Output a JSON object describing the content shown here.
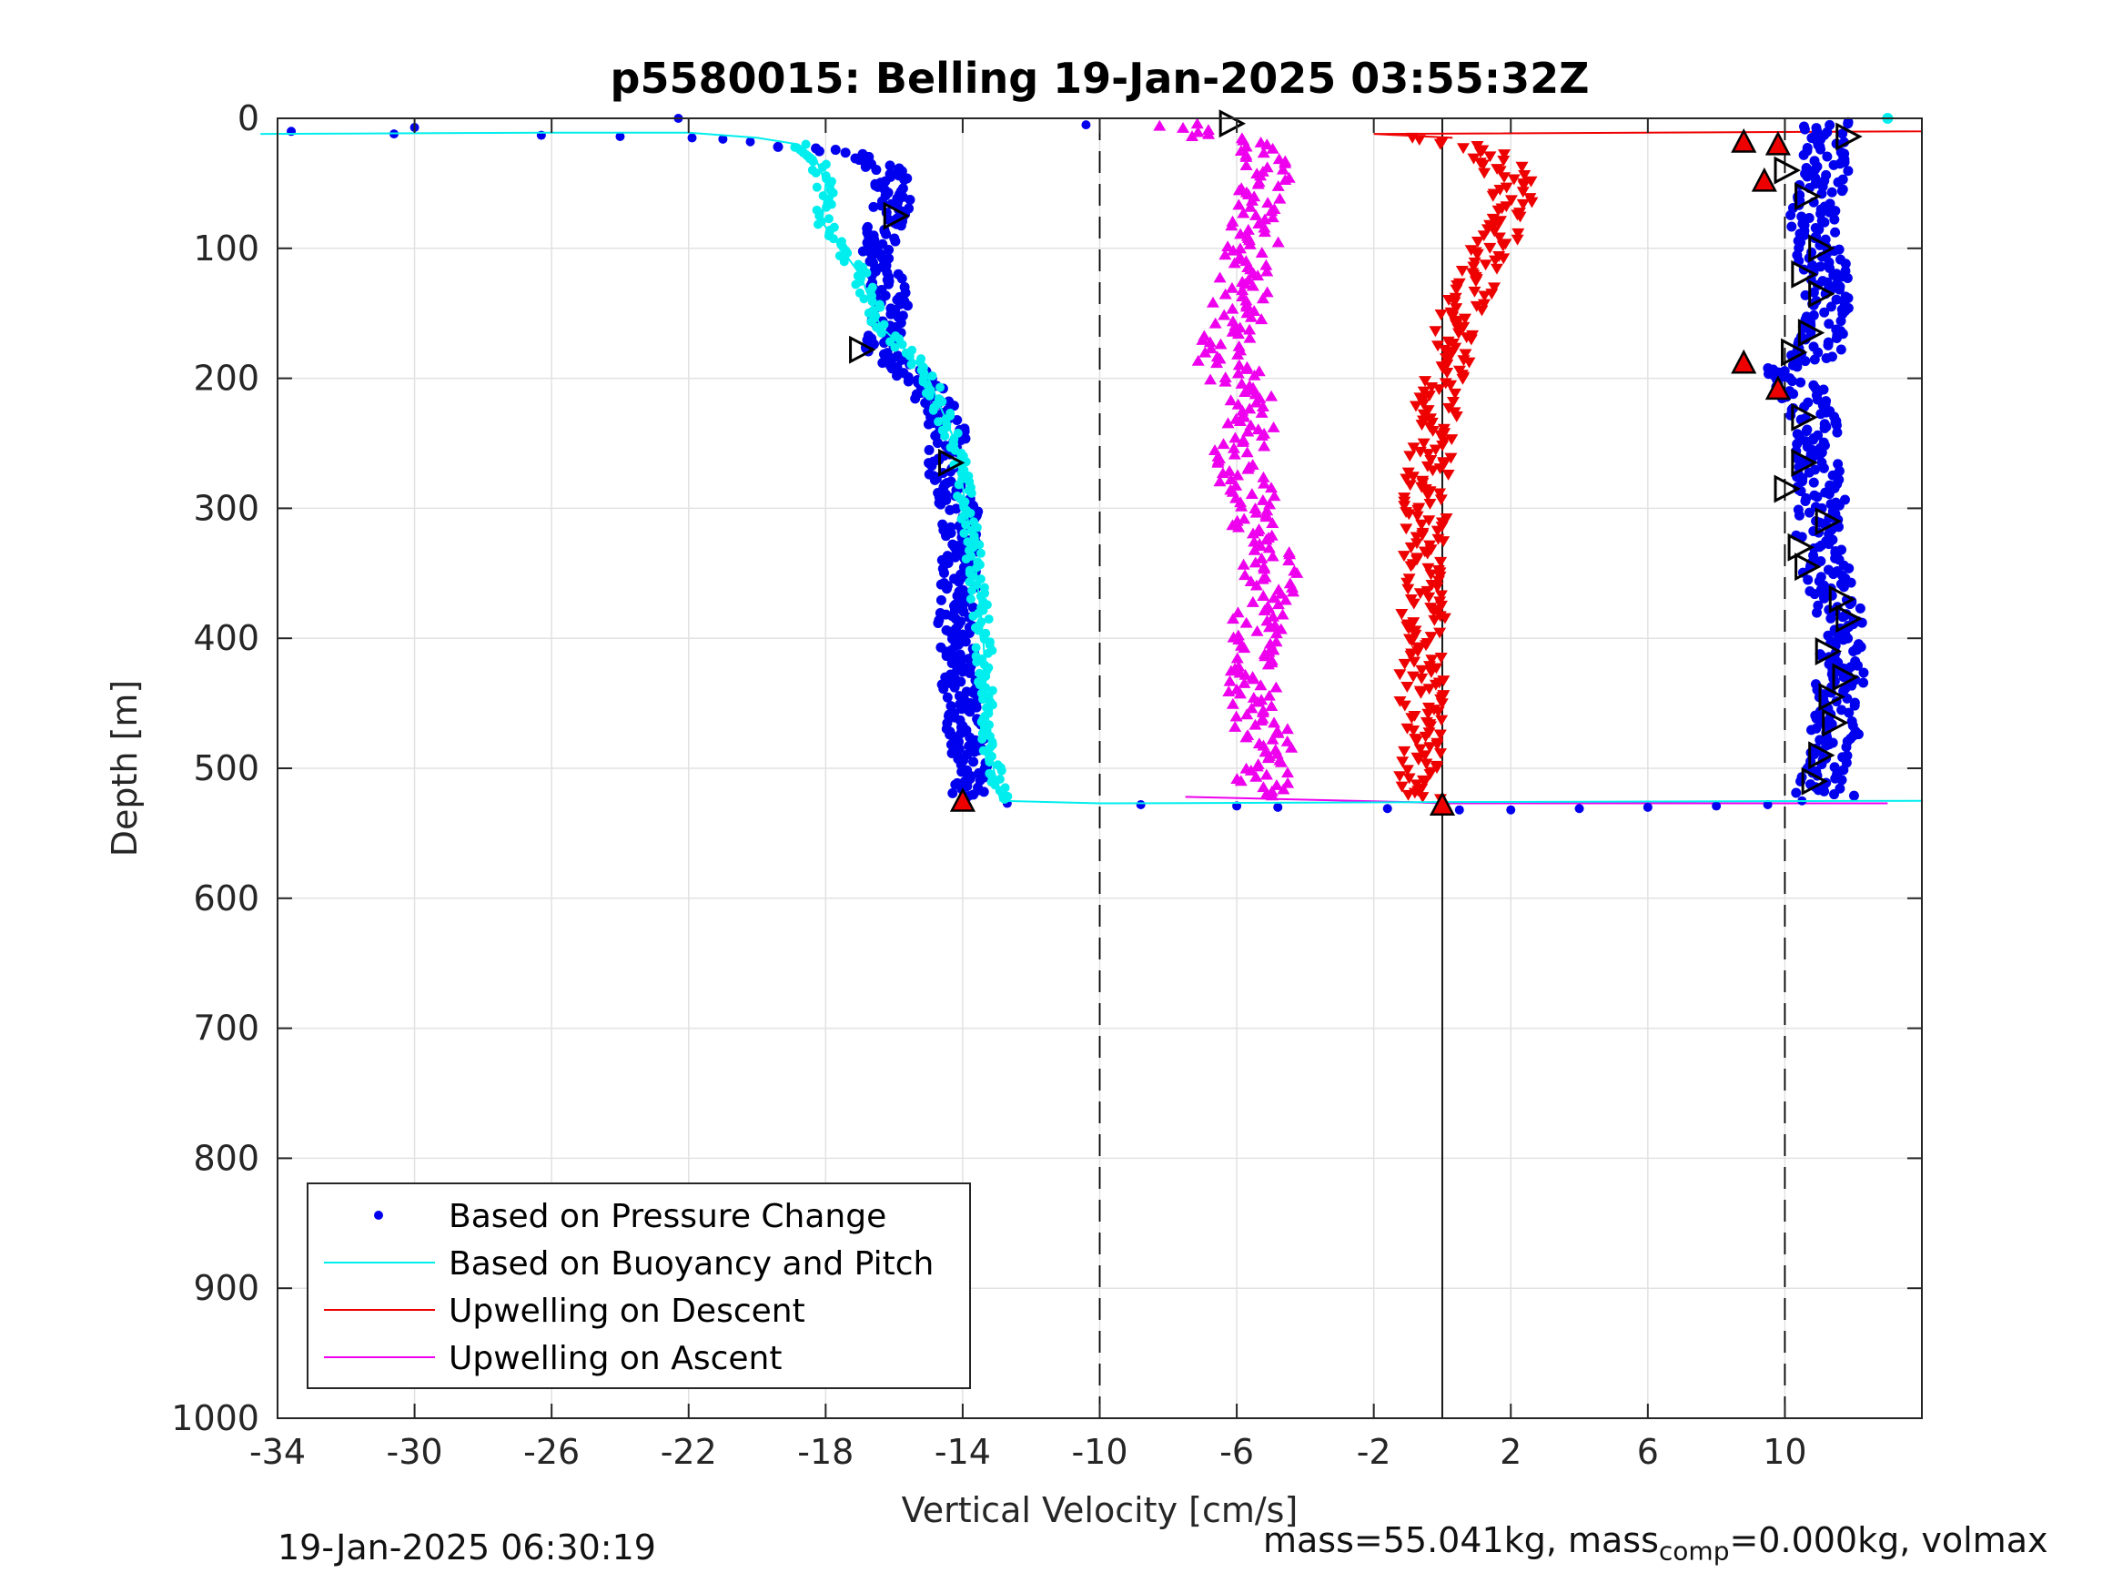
{
  "chart_data": {
    "type": "scatter",
    "title": "p5580015: Belling 19-Jan-2025 03:55:32Z",
    "xlabel": "Vertical Velocity [cm/s]",
    "ylabel": "Depth [m]",
    "xlim": [
      -34,
      14
    ],
    "ylim": [
      0,
      1000
    ],
    "y_reversed": true,
    "x_ticks": [
      -34,
      -30,
      -26,
      -22,
      -18,
      -14,
      -10,
      -6,
      -2,
      2,
      6,
      10
    ],
    "x_tick_labels": [
      "-34",
      "-30",
      "-26",
      "-22",
      "-18",
      "-14",
      "-10",
      "-6",
      "-2",
      "2",
      "6",
      "10"
    ],
    "y_ticks": [
      0,
      100,
      200,
      300,
      400,
      500,
      600,
      700,
      800,
      900,
      1000
    ],
    "y_tick_labels": [
      "0",
      "100",
      "200",
      "300",
      "400",
      "500",
      "600",
      "700",
      "800",
      "900",
      "1000"
    ],
    "grid": true,
    "legend_position": "bottom-left",
    "reference_lines": [
      {
        "x": -10,
        "style": "dashed"
      },
      {
        "x": 0,
        "style": "solid"
      },
      {
        "x": 10,
        "style": "dashed"
      }
    ],
    "series": [
      {
        "name": "Based on Pressure Change",
        "color": "#0000ee",
        "marker": "dot",
        "descent_profile": [
          [
            0,
            -22.3
          ],
          [
            5,
            -10.4
          ],
          [
            7,
            -30.0
          ],
          [
            10,
            -33.6
          ],
          [
            12,
            -30.6
          ],
          [
            13,
            -26.3
          ],
          [
            14,
            -24.0
          ],
          [
            15,
            -21.9
          ],
          [
            16,
            -21.0
          ],
          [
            18,
            -20.2
          ],
          [
            20,
            -19.5
          ],
          [
            22,
            -18.9
          ],
          [
            25,
            -17.8
          ],
          [
            30,
            -17.0
          ],
          [
            40,
            -16.2
          ],
          [
            60,
            -16.0
          ],
          [
            80,
            -16.2
          ],
          [
            100,
            -16.4
          ],
          [
            120,
            -16.3
          ],
          [
            140,
            -16.0
          ],
          [
            160,
            -16.2
          ],
          [
            180,
            -16.3
          ],
          [
            195,
            -15.5
          ],
          [
            210,
            -15.0
          ],
          [
            240,
            -14.4
          ],
          [
            270,
            -14.5
          ],
          [
            300,
            -14.1
          ],
          [
            350,
            -14.1
          ],
          [
            400,
            -14.2
          ],
          [
            450,
            -14.0
          ],
          [
            500,
            -13.8
          ],
          [
            520,
            -13.8
          ]
        ],
        "bottom_transition": [
          [
            527,
            -12.7
          ],
          [
            528,
            -8.8
          ],
          [
            529,
            -6.0
          ],
          [
            530,
            -4.8
          ],
          [
            531,
            -1.6
          ],
          [
            532,
            0.5
          ],
          [
            532,
            2.0
          ],
          [
            531,
            4.0
          ],
          [
            530,
            6.0
          ],
          [
            529,
            8.0
          ],
          [
            528,
            9.5
          ],
          [
            525,
            10.5
          ]
        ],
        "ascent_profile": [
          [
            520,
            11.0
          ],
          [
            500,
            11.2
          ],
          [
            480,
            11.5
          ],
          [
            450,
            11.4
          ],
          [
            420,
            11.8
          ],
          [
            400,
            11.6
          ],
          [
            370,
            11.5
          ],
          [
            350,
            11.2
          ],
          [
            320,
            11.0
          ],
          [
            300,
            11.1
          ],
          [
            270,
            10.9
          ],
          [
            240,
            10.9
          ],
          [
            210,
            10.5
          ],
          [
            195,
            10.0
          ],
          [
            180,
            11.0
          ],
          [
            150,
            11.3
          ],
          [
            120,
            11.2
          ],
          [
            100,
            11.0
          ],
          [
            80,
            10.8
          ],
          [
            60,
            11.0
          ],
          [
            40,
            11.2
          ],
          [
            20,
            11.1
          ],
          [
            8,
            11.0
          ],
          [
            2,
            11.5
          ]
        ]
      },
      {
        "name": "Based on Buoyancy and Pitch",
        "color": "#00eeee",
        "line": [
          [
            12,
            -34.5
          ],
          [
            11,
            -26.0
          ],
          [
            11,
            -22.0
          ],
          [
            15,
            -20.0
          ],
          [
            20,
            -18.8
          ],
          [
            30,
            -18.3
          ],
          [
            50,
            -18.0
          ],
          [
            80,
            -18.1
          ],
          [
            120,
            -17.0
          ],
          [
            160,
            -16.4
          ],
          [
            180,
            -15.6
          ],
          [
            200,
            -15.0
          ],
          [
            250,
            -14.2
          ],
          [
            300,
            -13.9
          ],
          [
            350,
            -13.6
          ],
          [
            400,
            -13.4
          ],
          [
            450,
            -13.3
          ],
          [
            500,
            -13.1
          ],
          [
            525,
            -12.9
          ],
          [
            527,
            -10.0
          ],
          [
            526,
            0.0
          ],
          [
            525,
            14.0
          ]
        ],
        "surface_points": [
          [
            0,
            13.0
          ]
        ]
      },
      {
        "name": "Upwelling on Descent",
        "color": "#ee0000",
        "marker": "triangle-down",
        "line": [
          [
            5,
            14.0
          ],
          [
            10,
            14.0
          ],
          [
            12,
            -2.0
          ],
          [
            15,
            0.3
          ]
        ],
        "profile": [
          [
            15,
            -1.5
          ],
          [
            20,
            0.5
          ],
          [
            30,
            1.5
          ],
          [
            50,
            2.0
          ],
          [
            70,
            2.2
          ],
          [
            100,
            1.5
          ],
          [
            130,
            1.0
          ],
          [
            150,
            0.5
          ],
          [
            180,
            0.3
          ],
          [
            200,
            0.0
          ],
          [
            250,
            -0.3
          ],
          [
            300,
            -0.5
          ],
          [
            350,
            -0.5
          ],
          [
            400,
            -0.6
          ],
          [
            450,
            -0.6
          ],
          [
            500,
            -0.7
          ],
          [
            525,
            -0.6
          ]
        ]
      },
      {
        "name": "Upwelling on Ascent",
        "color": "#ee00ee",
        "marker": "triangle-up",
        "line": [
          [
            522,
            -7.5
          ],
          [
            526,
            -1.0
          ],
          [
            527,
            0.0
          ],
          [
            527,
            13.0
          ]
        ],
        "profile": [
          [
            0,
            -5.0
          ],
          [
            5,
            -8.0
          ],
          [
            10,
            -7.5
          ],
          [
            20,
            -5.5
          ],
          [
            40,
            -5.0
          ],
          [
            60,
            -5.5
          ],
          [
            100,
            -5.5
          ],
          [
            150,
            -6.0
          ],
          [
            180,
            -6.5
          ],
          [
            220,
            -5.5
          ],
          [
            270,
            -6.0
          ],
          [
            300,
            -5.5
          ],
          [
            350,
            -5.0
          ],
          [
            400,
            -5.5
          ],
          [
            450,
            -5.5
          ],
          [
            500,
            -5.0
          ],
          [
            520,
            -5.5
          ]
        ]
      }
    ],
    "event_markers": {
      "open_right_triangles": [
        [
          4,
          -6.2
        ],
        [
          14,
          11.8
        ],
        [
          75,
          -16.0
        ],
        [
          178,
          -17.0
        ],
        [
          265,
          -14.4
        ],
        [
          40,
          10.0
        ],
        [
          60,
          10.6
        ],
        [
          100,
          11.0
        ],
        [
          120,
          10.5
        ],
        [
          135,
          11.0
        ],
        [
          165,
          10.7
        ],
        [
          180,
          10.2
        ],
        [
          230,
          10.5
        ],
        [
          265,
          10.5
        ],
        [
          285,
          10.0
        ],
        [
          310,
          11.2
        ],
        [
          330,
          10.4
        ],
        [
          345,
          10.6
        ],
        [
          370,
          11.6
        ],
        [
          385,
          11.8
        ],
        [
          410,
          11.2
        ],
        [
          430,
          11.7
        ],
        [
          445,
          11.3
        ],
        [
          465,
          11.4
        ],
        [
          490,
          11.0
        ],
        [
          510,
          10.8
        ]
      ],
      "filled_up_triangles": [
        [
          18,
          8.8
        ],
        [
          20,
          9.8
        ],
        [
          48,
          9.4
        ],
        [
          188,
          8.8
        ],
        [
          208,
          9.8
        ],
        [
          525,
          -14.0
        ],
        [
          528,
          0.0
        ]
      ]
    }
  },
  "footer": {
    "timestamp": "19-Jan-2025 06:30:19",
    "mass_prefix": "mass=55.041kg, mass",
    "mass_sub": "comp",
    "mass_suffix": "=0.000kg, volmax"
  }
}
